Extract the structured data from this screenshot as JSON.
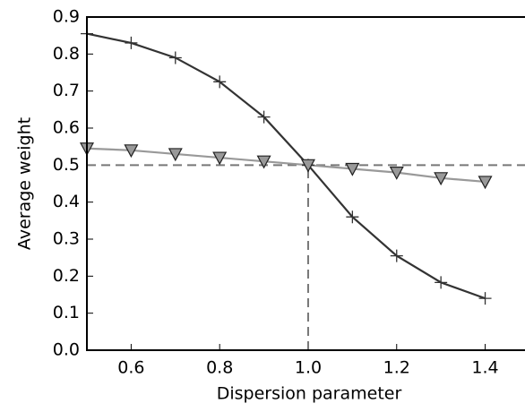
{
  "chart_data": {
    "type": "line",
    "x_label": "Dispersion parameter",
    "y_label": "Average weight",
    "x": [
      0.5,
      0.6,
      0.7,
      0.8,
      0.9,
      1.0,
      1.1,
      1.2,
      1.3,
      1.4
    ],
    "series": [
      {
        "color": "#333333",
        "marker": "plus",
        "values": [
          0.855,
          0.83,
          0.79,
          0.725,
          0.63,
          0.5,
          0.36,
          0.255,
          0.183,
          0.14
        ]
      },
      {
        "color": "#999999",
        "marker": "triangle",
        "values": [
          0.545,
          0.54,
          0.53,
          0.52,
          0.51,
          0.5,
          0.49,
          0.48,
          0.465,
          0.455
        ]
      }
    ],
    "hline": 0.5,
    "vline": 1.0,
    "reference_color": "#777777",
    "xlim": [
      0.5,
      1.49
    ],
    "ylim": [
      0,
      0.9
    ],
    "xticks": [
      0.6,
      0.8,
      {
        "value": 1.0,
        "label": "1.0"
      },
      1.2,
      1.4
    ],
    "yticks": [
      {
        "value": 0,
        "label": "0.0"
      },
      0.1,
      0.2,
      0.3,
      0.4,
      0.5,
      0.6,
      0.7,
      0.8,
      0.9
    ]
  }
}
